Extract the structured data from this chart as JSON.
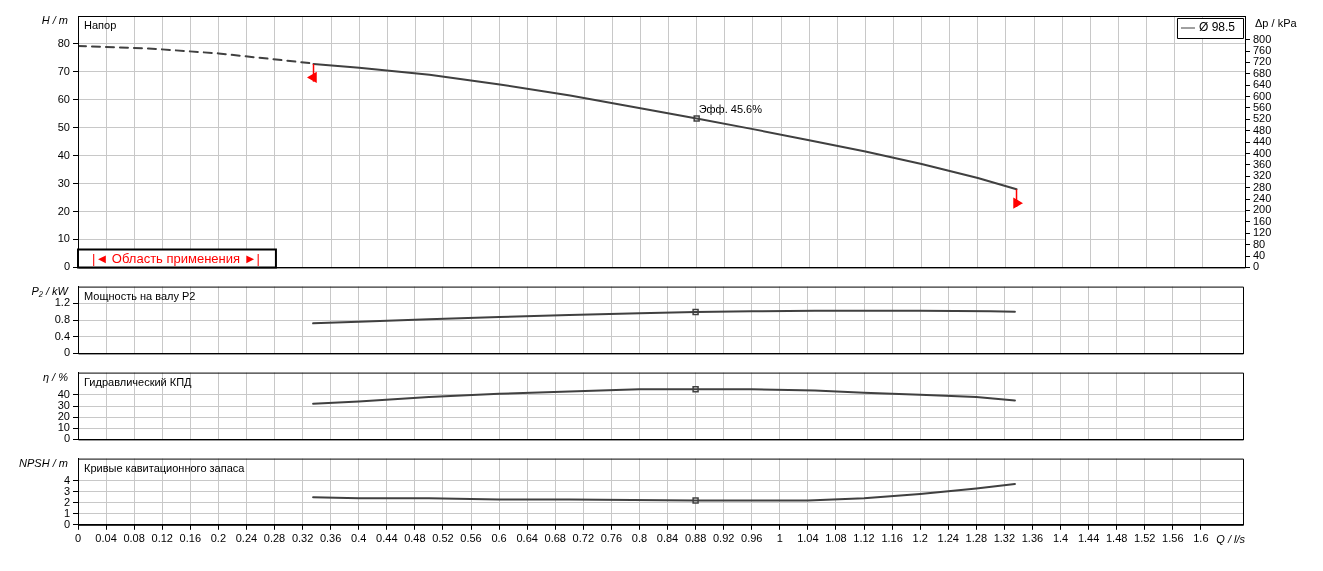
{
  "chart_data": [
    {
      "type": "line",
      "title": "Напор",
      "ylabel": "H / m",
      "y2label": "Δp / kPa",
      "xlim": [
        0,
        1.66
      ],
      "xticks": [
        0,
        0.04,
        0.08,
        0.12,
        0.16,
        0.2,
        0.24,
        0.28,
        0.32,
        0.36,
        0.4,
        0.44,
        0.48,
        0.52,
        0.56,
        0.6,
        0.64,
        0.68,
        0.72,
        0.76,
        0.8,
        0.84,
        0.88,
        0.92,
        0.96,
        1,
        1.04,
        1.08,
        1.12,
        1.16,
        1.2,
        1.24,
        1.28,
        1.32,
        1.36,
        1.4,
        1.44,
        1.48,
        1.52,
        1.56,
        1.6
      ],
      "ylim": [
        0,
        90
      ],
      "yticks": [
        0,
        10,
        20,
        30,
        40,
        50,
        60,
        70,
        80
      ],
      "y2lim": [
        0,
        883
      ],
      "y2ticks": [
        0,
        40,
        80,
        120,
        160,
        200,
        240,
        280,
        320,
        360,
        400,
        440,
        480,
        520,
        560,
        600,
        640,
        680,
        720,
        760,
        800
      ],
      "tick_labels": "y",
      "grid": true,
      "legend": "top right",
      "marker": "none",
      "series": [
        {
          "name": "Ø 98.5",
          "type": "line",
          "color": "#404040",
          "x": [
            0.335,
            0.4,
            0.5,
            0.6,
            0.7,
            0.8,
            0.88,
            0.96,
            1.04,
            1.12,
            1.2,
            1.28,
            1.335
          ],
          "values": [
            72.8,
            71.5,
            69,
            65.5,
            61.5,
            57,
            53.3,
            49.5,
            45.5,
            41.5,
            37,
            32,
            28
          ]
        },
        {
          "type": "line",
          "line_style": "dashed",
          "color": "#404040",
          "x": [
            0,
            0.1,
            0.2,
            0.335
          ],
          "values": [
            79.3,
            78.4,
            76.6,
            73
          ]
        },
        {
          "type": "scatter",
          "marker": "square",
          "color": "#404040",
          "x": [
            0.88
          ],
          "values": [
            53.3
          ]
        },
        {
          "type": "scatter",
          "marker": "triangle",
          "color": "#ff0000",
          "x": [
            0.335,
            1.335
          ],
          "values": [
            68,
            23
          ],
          "errors": [
            [
              66.5,
              72.8
            ],
            [
              21.7,
              27.9
            ]
          ]
        }
      ],
      "annotations": [
        {
          "text": "Эфф. 45.6%",
          "x": 0.88,
          "y": 53.3
        },
        "|◄ Область применения ►|"
      ]
    },
    {
      "type": "line",
      "title": "Мощность на валу P2",
      "ylabel": "P₂ / kW",
      "xlim": [
        0,
        1.66
      ],
      "xticks": [
        0,
        0.04,
        0.08,
        0.12,
        0.16,
        0.2,
        0.24,
        0.28,
        0.32,
        0.36,
        0.4,
        0.44,
        0.48,
        0.52,
        0.56,
        0.6,
        0.64,
        0.68,
        0.72,
        0.76,
        0.8,
        0.84,
        0.88,
        0.92,
        0.96,
        1,
        1.04,
        1.08,
        1.12,
        1.16,
        1.2,
        1.24,
        1.28,
        1.32,
        1.36,
        1.4,
        1.44,
        1.48,
        1.52,
        1.56,
        1.6
      ],
      "ylim": [
        0,
        1.6
      ],
      "yticks": [
        0,
        0.4,
        0.8,
        1.2
      ],
      "tick_labels": "y",
      "grid": true,
      "marker": "none",
      "series": [
        {
          "type": "line",
          "color": "#404040",
          "x": [
            0.335,
            0.4,
            0.5,
            0.6,
            0.7,
            0.8,
            0.88,
            0.96,
            1.05,
            1.2,
            1.3,
            1.335
          ],
          "values": [
            0.72,
            0.76,
            0.82,
            0.87,
            0.92,
            0.96,
            0.99,
            1.01,
            1.02,
            1.02,
            1.01,
            1
          ]
        },
        {
          "type": "scatter",
          "marker": "square",
          "color": "#404040",
          "x": [
            0.88
          ],
          "values": [
            0.99
          ]
        }
      ]
    },
    {
      "type": "line",
      "title": "Гидравлический КПД",
      "ylabel": "η / %",
      "xlim": [
        0,
        1.66
      ],
      "xticks": [
        0,
        0.04,
        0.08,
        0.12,
        0.16,
        0.2,
        0.24,
        0.28,
        0.32,
        0.36,
        0.4,
        0.44,
        0.48,
        0.52,
        0.56,
        0.6,
        0.64,
        0.68,
        0.72,
        0.76,
        0.8,
        0.84,
        0.88,
        0.92,
        0.96,
        1,
        1.04,
        1.08,
        1.12,
        1.16,
        1.2,
        1.24,
        1.28,
        1.32,
        1.36,
        1.4,
        1.44,
        1.48,
        1.52,
        1.56,
        1.6
      ],
      "ylim": [
        0,
        60
      ],
      "yticks": [
        0,
        10,
        20,
        30,
        40
      ],
      "tick_labels": "y",
      "grid": true,
      "marker": "none",
      "series": [
        {
          "type": "line",
          "color": "#404040",
          "x": [
            0.335,
            0.4,
            0.5,
            0.6,
            0.7,
            0.8,
            0.88,
            0.96,
            1.05,
            1.12,
            1.2,
            1.28,
            1.335
          ],
          "values": [
            32,
            34,
            38,
            41,
            43,
            45,
            45,
            45,
            44,
            42,
            40,
            38,
            35
          ]
        },
        {
          "type": "scatter",
          "marker": "square",
          "color": "#404040",
          "x": [
            0.88
          ],
          "values": [
            45
          ]
        }
      ]
    },
    {
      "type": "line",
      "title": "Кривые кавитационного запаса",
      "ylabel": "NPSH / m",
      "xlabel": "Q / l/s",
      "xlim": [
        0,
        1.66
      ],
      "xticks": [
        0,
        0.04,
        0.08,
        0.12,
        0.16,
        0.2,
        0.24,
        0.28,
        0.32,
        0.36,
        0.4,
        0.44,
        0.48,
        0.52,
        0.56,
        0.6,
        0.64,
        0.68,
        0.72,
        0.76,
        0.8,
        0.84,
        0.88,
        0.92,
        0.96,
        1,
        1.04,
        1.08,
        1.12,
        1.16,
        1.2,
        1.24,
        1.28,
        1.32,
        1.36,
        1.4,
        1.44,
        1.48,
        1.52,
        1.56,
        1.6
      ],
      "ylim": [
        0,
        6
      ],
      "yticks": [
        0,
        1,
        2,
        3,
        4
      ],
      "grid": true,
      "marker": "none",
      "series": [
        {
          "type": "line",
          "color": "#404040",
          "x": [
            0.335,
            0.4,
            0.5,
            0.6,
            0.7,
            0.88,
            1.04,
            1.12,
            1.2,
            1.28,
            1.335
          ],
          "values": [
            2.5,
            2.4,
            2.4,
            2.3,
            2.3,
            2.2,
            2.2,
            2.4,
            2.8,
            3.3,
            3.7
          ]
        },
        {
          "type": "scatter",
          "marker": "square",
          "color": "#404040",
          "x": [
            0.88
          ],
          "values": [
            2.2
          ]
        }
      ]
    }
  ]
}
